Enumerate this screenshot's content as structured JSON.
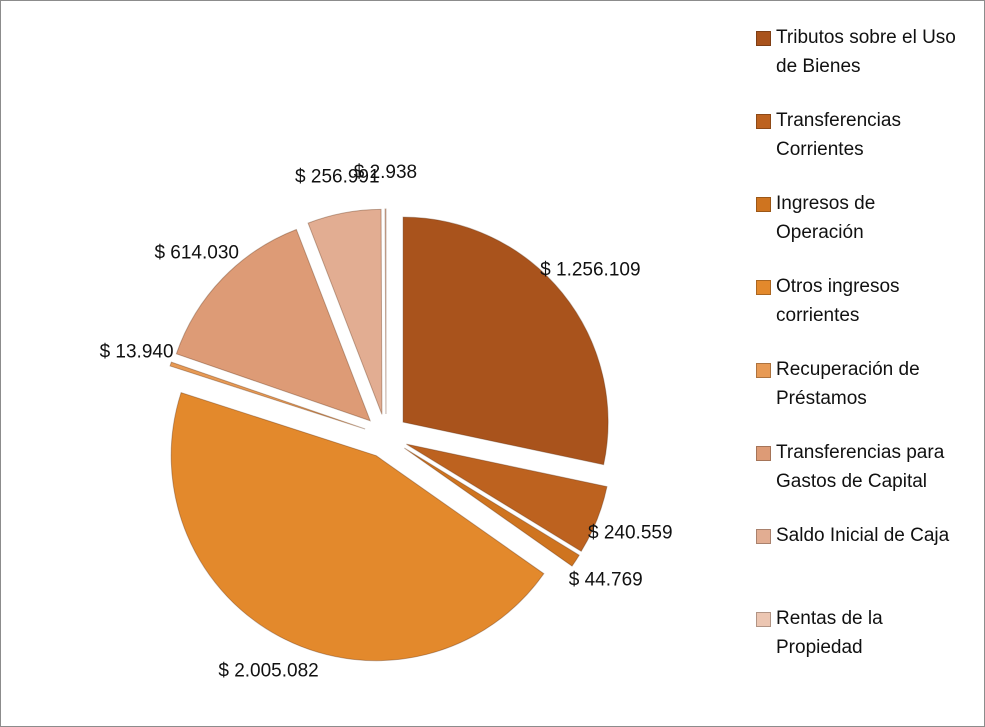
{
  "chart_data": {
    "type": "pie",
    "categories": [
      "Tributos sobre el Uso de Bienes",
      "Transferencias Corrientes",
      "Ingresos de Operación",
      "Otros ingresos corrientes",
      "Recuperación de Préstamos",
      "Transferencias para Gastos de Capital",
      "Saldo Inicial de Caja",
      "Rentas de la Propiedad"
    ],
    "values": [
      1256109,
      240559,
      44769,
      2005082,
      13940,
      614030,
      256991,
      2938
    ],
    "value_labels": [
      "$ 1.256.109",
      "$ 240.559",
      "$ 44.769",
      "$ 2.005.082",
      "$ 13.940",
      "$ 614.030",
      "$ 256.991",
      "$ 2.938"
    ],
    "colors": [
      "#a9531c",
      "#bd621f",
      "#cf741f",
      "#e3892c",
      "#e79a55",
      "#dd9b76",
      "#e2ad92",
      "#ecc6b2"
    ],
    "legend": "right"
  }
}
